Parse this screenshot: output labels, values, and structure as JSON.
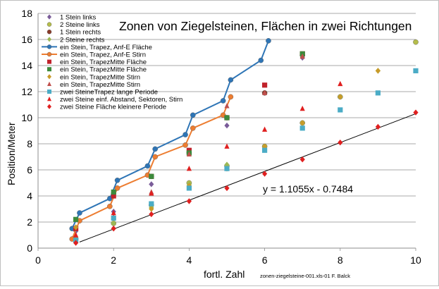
{
  "chart_data": {
    "type": "scatter",
    "title": "Zonen von Ziegelsteinen, Flächen in zwei  Richtungen",
    "xlabel": "fortl. Zahl",
    "ylabel": "Position/Meter",
    "footnote": "zonen-ziegelsteine-001.xls-01  F. Balck",
    "xlim": [
      0,
      10
    ],
    "ylim": [
      0,
      18
    ],
    "x_ticks": [
      0,
      2,
      4,
      6,
      8,
      10
    ],
    "y_ticks": [
      0,
      2,
      4,
      6,
      8,
      10,
      12,
      14,
      16,
      18
    ],
    "grid": true,
    "legend_position": "top-left",
    "trendline": {
      "equation": "y = 1.1055x - 0.7484",
      "slope": 1.1055,
      "intercept": -0.7484,
      "x_range": [
        1.1,
        10
      ],
      "color": "#000000"
    },
    "series": [
      {
        "name": "1 Stein links",
        "marker": "diamond",
        "color": "#7a5c99",
        "lines": false,
        "points": [
          [
            1,
            1.3
          ],
          [
            2,
            2.8
          ],
          [
            3,
            4.9
          ],
          [
            4,
            7.4
          ],
          [
            5,
            9.4
          ],
          [
            7,
            14.6
          ]
        ]
      },
      {
        "name": "2 Steine links",
        "marker": "circle",
        "color": "#b5bd4a",
        "lines": false,
        "points": [
          [
            1,
            0.7
          ],
          [
            2,
            1.9
          ],
          [
            3,
            3.3
          ],
          [
            4,
            5.0
          ],
          [
            5,
            6.3
          ],
          [
            6,
            7.8
          ],
          [
            7,
            9.6
          ],
          [
            8,
            11.6
          ],
          [
            10,
            15.8
          ]
        ]
      },
      {
        "name": "1 Stein rechts",
        "marker": "circle",
        "color": "#8a3b2a",
        "lines": false,
        "points": [
          [
            2,
            4.2
          ],
          [
            3,
            5.5
          ],
          [
            4,
            7.3
          ],
          [
            5,
            10.0
          ],
          [
            6,
            11.9
          ],
          [
            7,
            14.8
          ]
        ]
      },
      {
        "name": "2 Steine rechts",
        "marker": "diamond",
        "color": "#9bb855",
        "lines": false,
        "points": [
          [
            1,
            0.8
          ],
          [
            2,
            1.9
          ],
          [
            3,
            3.1
          ],
          [
            4,
            4.9
          ],
          [
            5,
            6.4
          ],
          [
            6,
            7.6
          ],
          [
            7,
            9.6
          ],
          [
            9,
            13.6
          ]
        ]
      },
      {
        "name": "ein Stein, Trapez, Anf-E Fläche",
        "marker": "circle",
        "color": "#2e75b6",
        "lines": true,
        "points": [
          [
            0.9,
            1.5
          ],
          [
            1.1,
            2.7
          ],
          [
            1.9,
            3.8
          ],
          [
            2.1,
            5.2
          ],
          [
            2.9,
            6.3
          ],
          [
            3.1,
            7.6
          ],
          [
            3.9,
            8.7
          ],
          [
            4.1,
            10.2
          ],
          [
            4.9,
            11.3
          ],
          [
            5.1,
            12.9
          ],
          [
            5.9,
            14.4
          ],
          [
            6.1,
            15.9
          ]
        ]
      },
      {
        "name": "ein Stein, Trapez, Anf-E  Stirn",
        "marker": "circle",
        "color": "#ed7d31",
        "lines": true,
        "points": [
          [
            0.9,
            0.7
          ],
          [
            1.1,
            2.1
          ],
          [
            1.9,
            3.2
          ],
          [
            2.1,
            4.6
          ],
          [
            2.9,
            5.6
          ],
          [
            3.1,
            7.0
          ],
          [
            3.9,
            7.9
          ],
          [
            4.1,
            9.2
          ],
          [
            4.9,
            10.2
          ],
          [
            5.1,
            11.6
          ]
        ]
      },
      {
        "name": "ein Stein, TrapezMitte Fläche",
        "marker": "square",
        "color": "#c0222b",
        "lines": false,
        "points": [
          [
            1,
            1.5
          ],
          [
            2,
            4.0
          ],
          [
            3,
            5.5
          ],
          [
            4,
            7.5
          ],
          [
            5,
            10.0
          ],
          [
            6,
            12.5
          ],
          [
            7,
            14.9
          ]
        ]
      },
      {
        "name": "ein Stein, TrapezMitte Fläche",
        "marker": "square",
        "color": "#3c8a3c",
        "lines": false,
        "points": [
          [
            1,
            2.2
          ],
          [
            2,
            4.3
          ],
          [
            3,
            5.5
          ],
          [
            4,
            7.3
          ],
          [
            5,
            10.0
          ],
          [
            7,
            14.9
          ]
        ]
      },
      {
        "name": "ein Stein, TrapezMitte Stirn",
        "marker": "diamond",
        "color": "#c89b2a",
        "lines": false,
        "points": [
          [
            1,
            1.6
          ],
          [
            2,
            2.3
          ],
          [
            3,
            3.0
          ],
          [
            4,
            4.8
          ],
          [
            5,
            6.1
          ],
          [
            6,
            7.8
          ],
          [
            7,
            9.6
          ],
          [
            8,
            11.6
          ],
          [
            9,
            13.6
          ]
        ]
      },
      {
        "name": "ein Stein, TrapezMitte Stirn",
        "marker": "triangle",
        "color": "#c0504d",
        "lines": false,
        "points": [
          [
            1,
            1.0
          ],
          [
            2,
            2.4
          ],
          [
            3,
            4.3
          ],
          [
            4,
            7.2
          ],
          [
            5,
            10.9
          ],
          [
            6,
            11.9
          ],
          [
            7,
            14.7
          ]
        ]
      },
      {
        "name": "zwei SteineTrapez lange Periode",
        "marker": "square",
        "color": "#4bacc6",
        "lines": false,
        "points": [
          [
            1,
            0.6
          ],
          [
            2,
            2.3
          ],
          [
            3,
            3.4
          ],
          [
            4,
            4.6
          ],
          [
            5,
            6.1
          ],
          [
            6,
            7.5
          ],
          [
            7,
            9.2
          ],
          [
            8,
            10.6
          ],
          [
            9,
            11.9
          ],
          [
            10,
            13.6
          ]
        ]
      },
      {
        "name": "zwei Steine einf. Abstand, Sektoren, Stirn",
        "marker": "triangle",
        "color": "#e02020",
        "lines": false,
        "points": [
          [
            1,
            1.0
          ],
          [
            2,
            2.7
          ],
          [
            3,
            4.2
          ],
          [
            4,
            6.1
          ],
          [
            5,
            7.8
          ],
          [
            6,
            9.1
          ],
          [
            7,
            10.7
          ],
          [
            8,
            12.6
          ]
        ]
      },
      {
        "name": "zwei Steine Fläche kleinere Periode",
        "marker": "diamond",
        "color": "#e02020",
        "lines": false,
        "points": [
          [
            1,
            0.4
          ],
          [
            2,
            1.5
          ],
          [
            3,
            2.6
          ],
          [
            4,
            3.6
          ],
          [
            5,
            4.6
          ],
          [
            6,
            5.7
          ],
          [
            7,
            6.8
          ],
          [
            8,
            8.1
          ],
          [
            9,
            9.3
          ],
          [
            10,
            10.4
          ]
        ]
      }
    ]
  }
}
